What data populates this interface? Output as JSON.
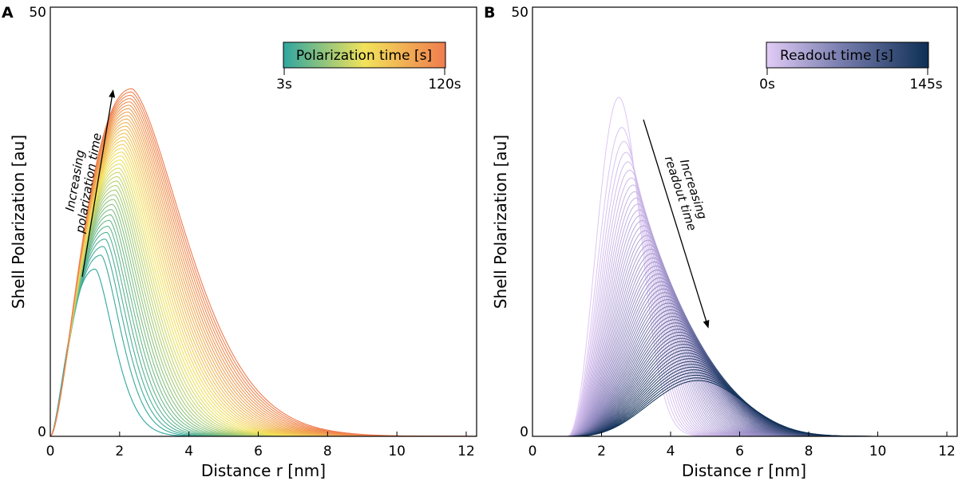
{
  "chart_data": [
    {
      "panel": "A",
      "type": "line",
      "xlabel": "Distance r [nm]",
      "ylabel": "Shell Polarization [au]",
      "xlim": [
        0,
        12.3
      ],
      "ylim": [
        0,
        50
      ],
      "xticks": [
        0,
        2,
        4,
        6,
        8,
        10,
        12
      ],
      "yticks": [
        0,
        50
      ],
      "grid": false,
      "colorbar": {
        "title": "Polarization time [s]",
        "min_label": "3s",
        "max_label": "120s",
        "placement": "top-right",
        "colors": [
          "#2fa6a0",
          "#f2e35a",
          "#f07c4e"
        ]
      },
      "annotation": {
        "lines": [
          "Increasing",
          "polarization time"
        ],
        "direction": "up"
      },
      "series_family": {
        "count": 40,
        "parameter": "Polarization time",
        "parameter_range": [
          3,
          120
        ],
        "first_curve": {
          "peak_x": 1.3,
          "peak_y": 19.5
        },
        "last_curve": {
          "peak_x": 2.35,
          "peak_y": 40.5
        },
        "envelope": {
          "x": [
            0,
            0.5,
            1.0,
            2.35,
            3.5,
            5.0,
            6.0,
            8.0,
            10.0,
            12.0
          ],
          "y": [
            0,
            3,
            12.5,
            40.5,
            26,
            9,
            4,
            0.8,
            0.1,
            0
          ]
        }
      }
    },
    {
      "panel": "B",
      "type": "line",
      "xlabel": "Distance r [nm]",
      "ylabel": "Shell Polarization [au]",
      "xlim": [
        0,
        12.3
      ],
      "ylim": [
        0,
        50
      ],
      "xticks": [
        0,
        2,
        4,
        6,
        8,
        10,
        12
      ],
      "yticks": [
        0,
        50
      ],
      "grid": false,
      "colorbar": {
        "title": "Readout time [s]",
        "min_label": "0s",
        "max_label": "145s",
        "placement": "top-right",
        "colors": [
          "#d9c2f0",
          "#13345a"
        ]
      },
      "annotation": {
        "lines": [
          "Increasing",
          "readout time"
        ],
        "direction": "down"
      },
      "series_family": {
        "count": 60,
        "parameter": "Readout time",
        "parameter_range": [
          0,
          145
        ],
        "first_curve": {
          "peak_x": 2.5,
          "peak_y": 39.5
        },
        "last_curve": {
          "peak_x": 4.8,
          "peak_y": 6.5
        },
        "onset_x": 1.0
      }
    }
  ]
}
